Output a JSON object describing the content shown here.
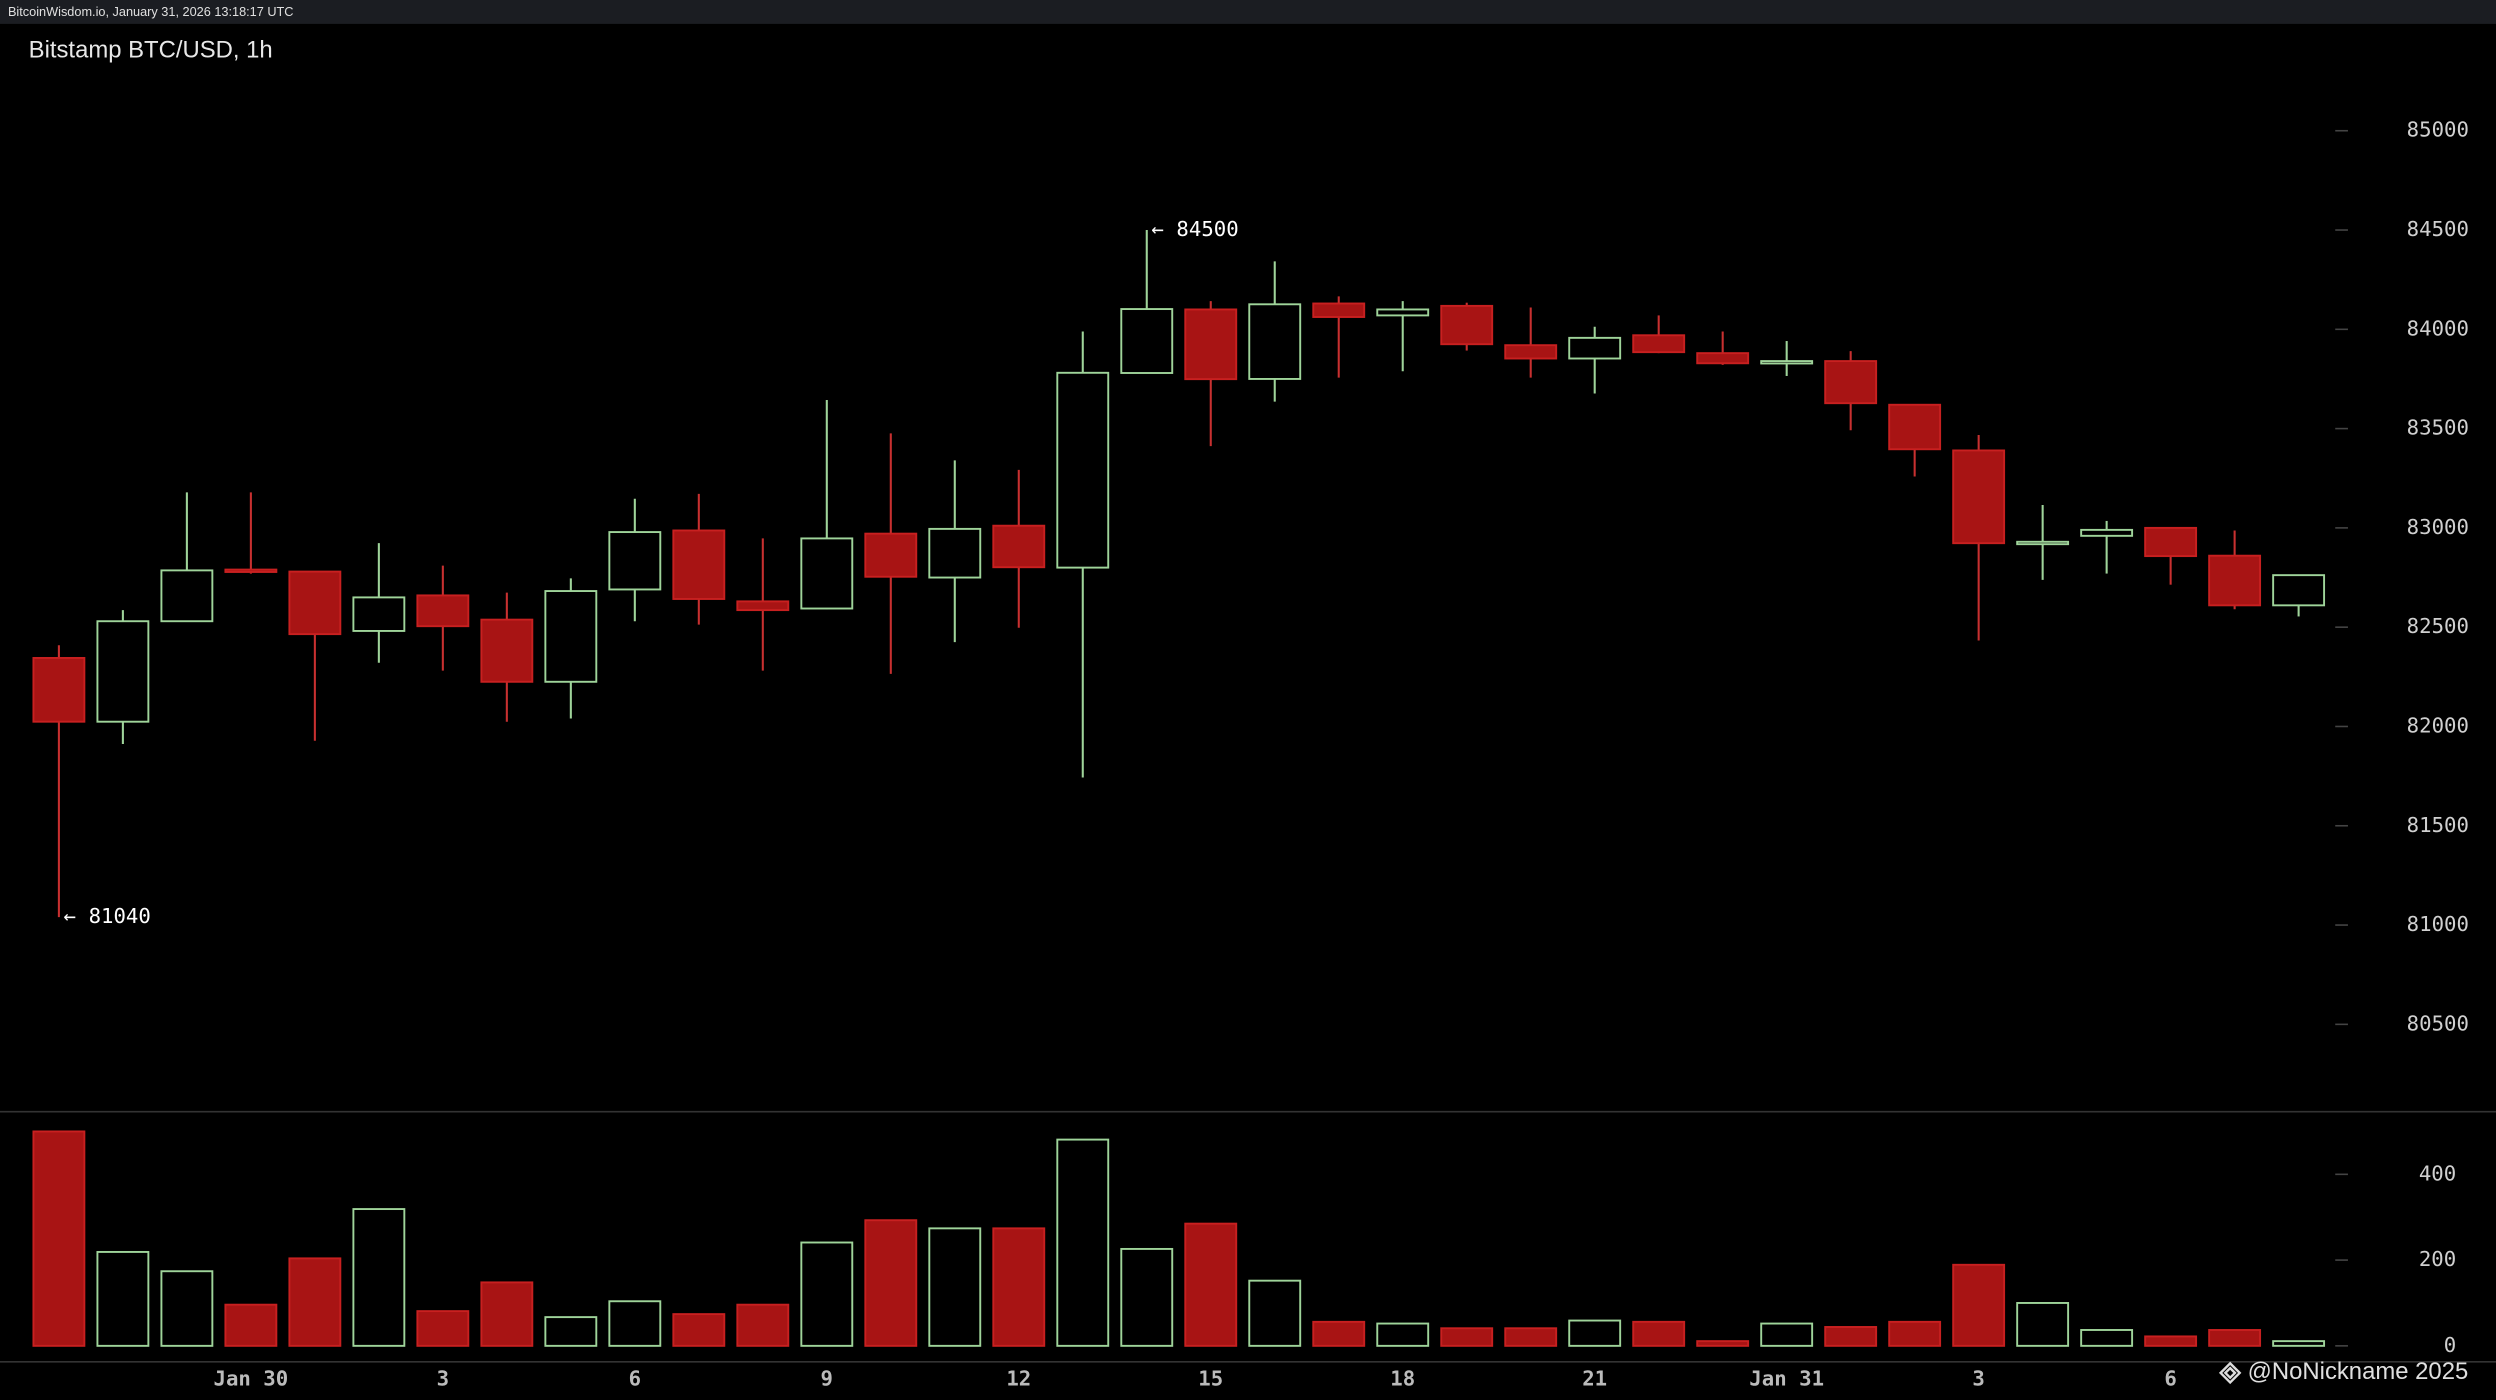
{
  "header": "BitcoinWisdom.io, January 31, 2026 13:18:17 UTC",
  "watermark": "@NoNickname 2025",
  "chart_data": {
    "type": "candlestick",
    "title": "Bitstamp BTC/USD, 1h",
    "categories": [
      null,
      null,
      null,
      "Jan 30",
      null,
      null,
      "3",
      null,
      null,
      "6",
      null,
      null,
      "9",
      null,
      null,
      "12",
      null,
      null,
      "15",
      null,
      null,
      "18",
      null,
      null,
      "21",
      null,
      null,
      "Jan 31",
      null,
      null,
      "3",
      null,
      null,
      "6",
      null,
      null
    ],
    "open": [
      82345,
      82024,
      82530,
      82790,
      82780,
      82481,
      82660,
      82538,
      82225,
      82690,
      82987,
      82630,
      82594,
      82971,
      82750,
      83011,
      82800,
      83780,
      84100,
      83750,
      84130,
      84070,
      84118,
      83920,
      83853,
      83970,
      83880,
      83830,
      83840,
      83620,
      83390,
      82920,
      82960,
      83000,
      82860,
      82610
    ],
    "high": [
      82409,
      82586,
      83179,
      83179,
      82780,
      82923,
      82810,
      82674,
      82746,
      83147,
      83171,
      82947,
      83644,
      83476,
      83340,
      83292,
      83989,
      84500,
      84142,
      84342,
      84166,
      84142,
      84134,
      84110,
      84013,
      84070,
      83989,
      83941,
      83890,
      83620,
      83468,
      83115,
      83035,
      83000,
      82987,
      82762
    ],
    "low": [
      81040,
      81912,
      82530,
      82770,
      81928,
      82321,
      82281,
      82024,
      82040,
      82530,
      82513,
      82281,
      82590,
      82265,
      82425,
      82497,
      81743,
      83780,
      83412,
      83636,
      83757,
      83789,
      83893,
      83757,
      83677,
      83880,
      83821,
      83765,
      83492,
      83259,
      82433,
      82738,
      82770,
      82714,
      82590,
      82554
    ],
    "close": [
      82024,
      82530,
      82786,
      82780,
      82465,
      82650,
      82505,
      82225,
      82682,
      82979,
      82642,
      82586,
      82947,
      82754,
      82995,
      82802,
      83781,
      84102,
      83749,
      84126,
      84062,
      84100,
      83925,
      83853,
      83957,
      83885,
      83829,
      83840,
      83628,
      83396,
      82923,
      82930,
      82990,
      82858,
      82610,
      82762
    ],
    "volume": [
      500,
      219,
      174,
      96,
      204,
      319,
      81,
      148,
      67,
      104,
      74,
      96,
      241,
      293,
      274,
      274,
      481,
      226,
      285,
      152,
      56,
      52,
      41,
      41,
      59,
      56,
      11,
      52,
      44,
      56,
      189,
      100,
      37,
      22,
      37,
      11
    ],
    "up_color": "#9fd49a",
    "down_color": "#a81414",
    "ylim": [
      80060,
      85530
    ],
    "yticks": [
      80500,
      81000,
      81500,
      82000,
      82500,
      83000,
      83500,
      84000,
      84500,
      85000
    ],
    "volume_ylim": [
      0,
      520
    ],
    "volume_ticks": [
      0,
      200,
      400
    ],
    "annotations": [
      {
        "label": "← 84500",
        "value": 84500
      },
      {
        "label": "← 81040",
        "value": 81040
      }
    ]
  }
}
